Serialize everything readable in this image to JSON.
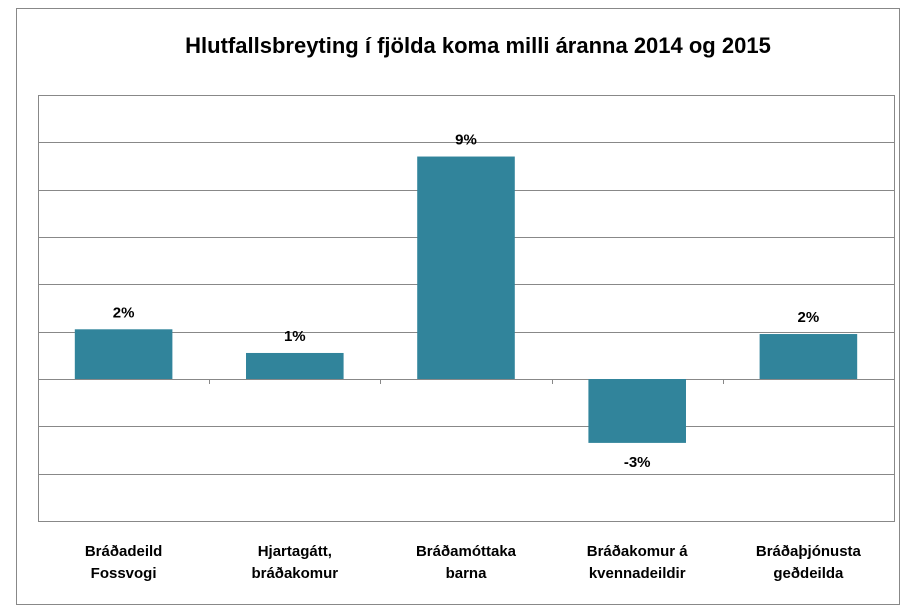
{
  "chart_data": {
    "type": "bar",
    "title": "Hlutfallsbreyting í fjölda koma milli áranna 2014 og 2015",
    "categories": [
      "Bráðadeild Fossvogi",
      "Hjartagátt, bráðakomur",
      "Bráðamóttaka barna",
      "Bráðakomur á kvennadeildir",
      "Bráðaþjónusta geðdeilda"
    ],
    "values": [
      2.1,
      1.1,
      9.4,
      -2.7,
      1.9
    ],
    "value_labels": [
      "2%",
      "1%",
      "9%",
      "-3%",
      "2%"
    ],
    "color": "#31849b",
    "ylim": [
      -6,
      12
    ],
    "yticks": [
      -6,
      -4,
      -2,
      0,
      2,
      4,
      6,
      8,
      10,
      12
    ],
    "grid": true
  }
}
